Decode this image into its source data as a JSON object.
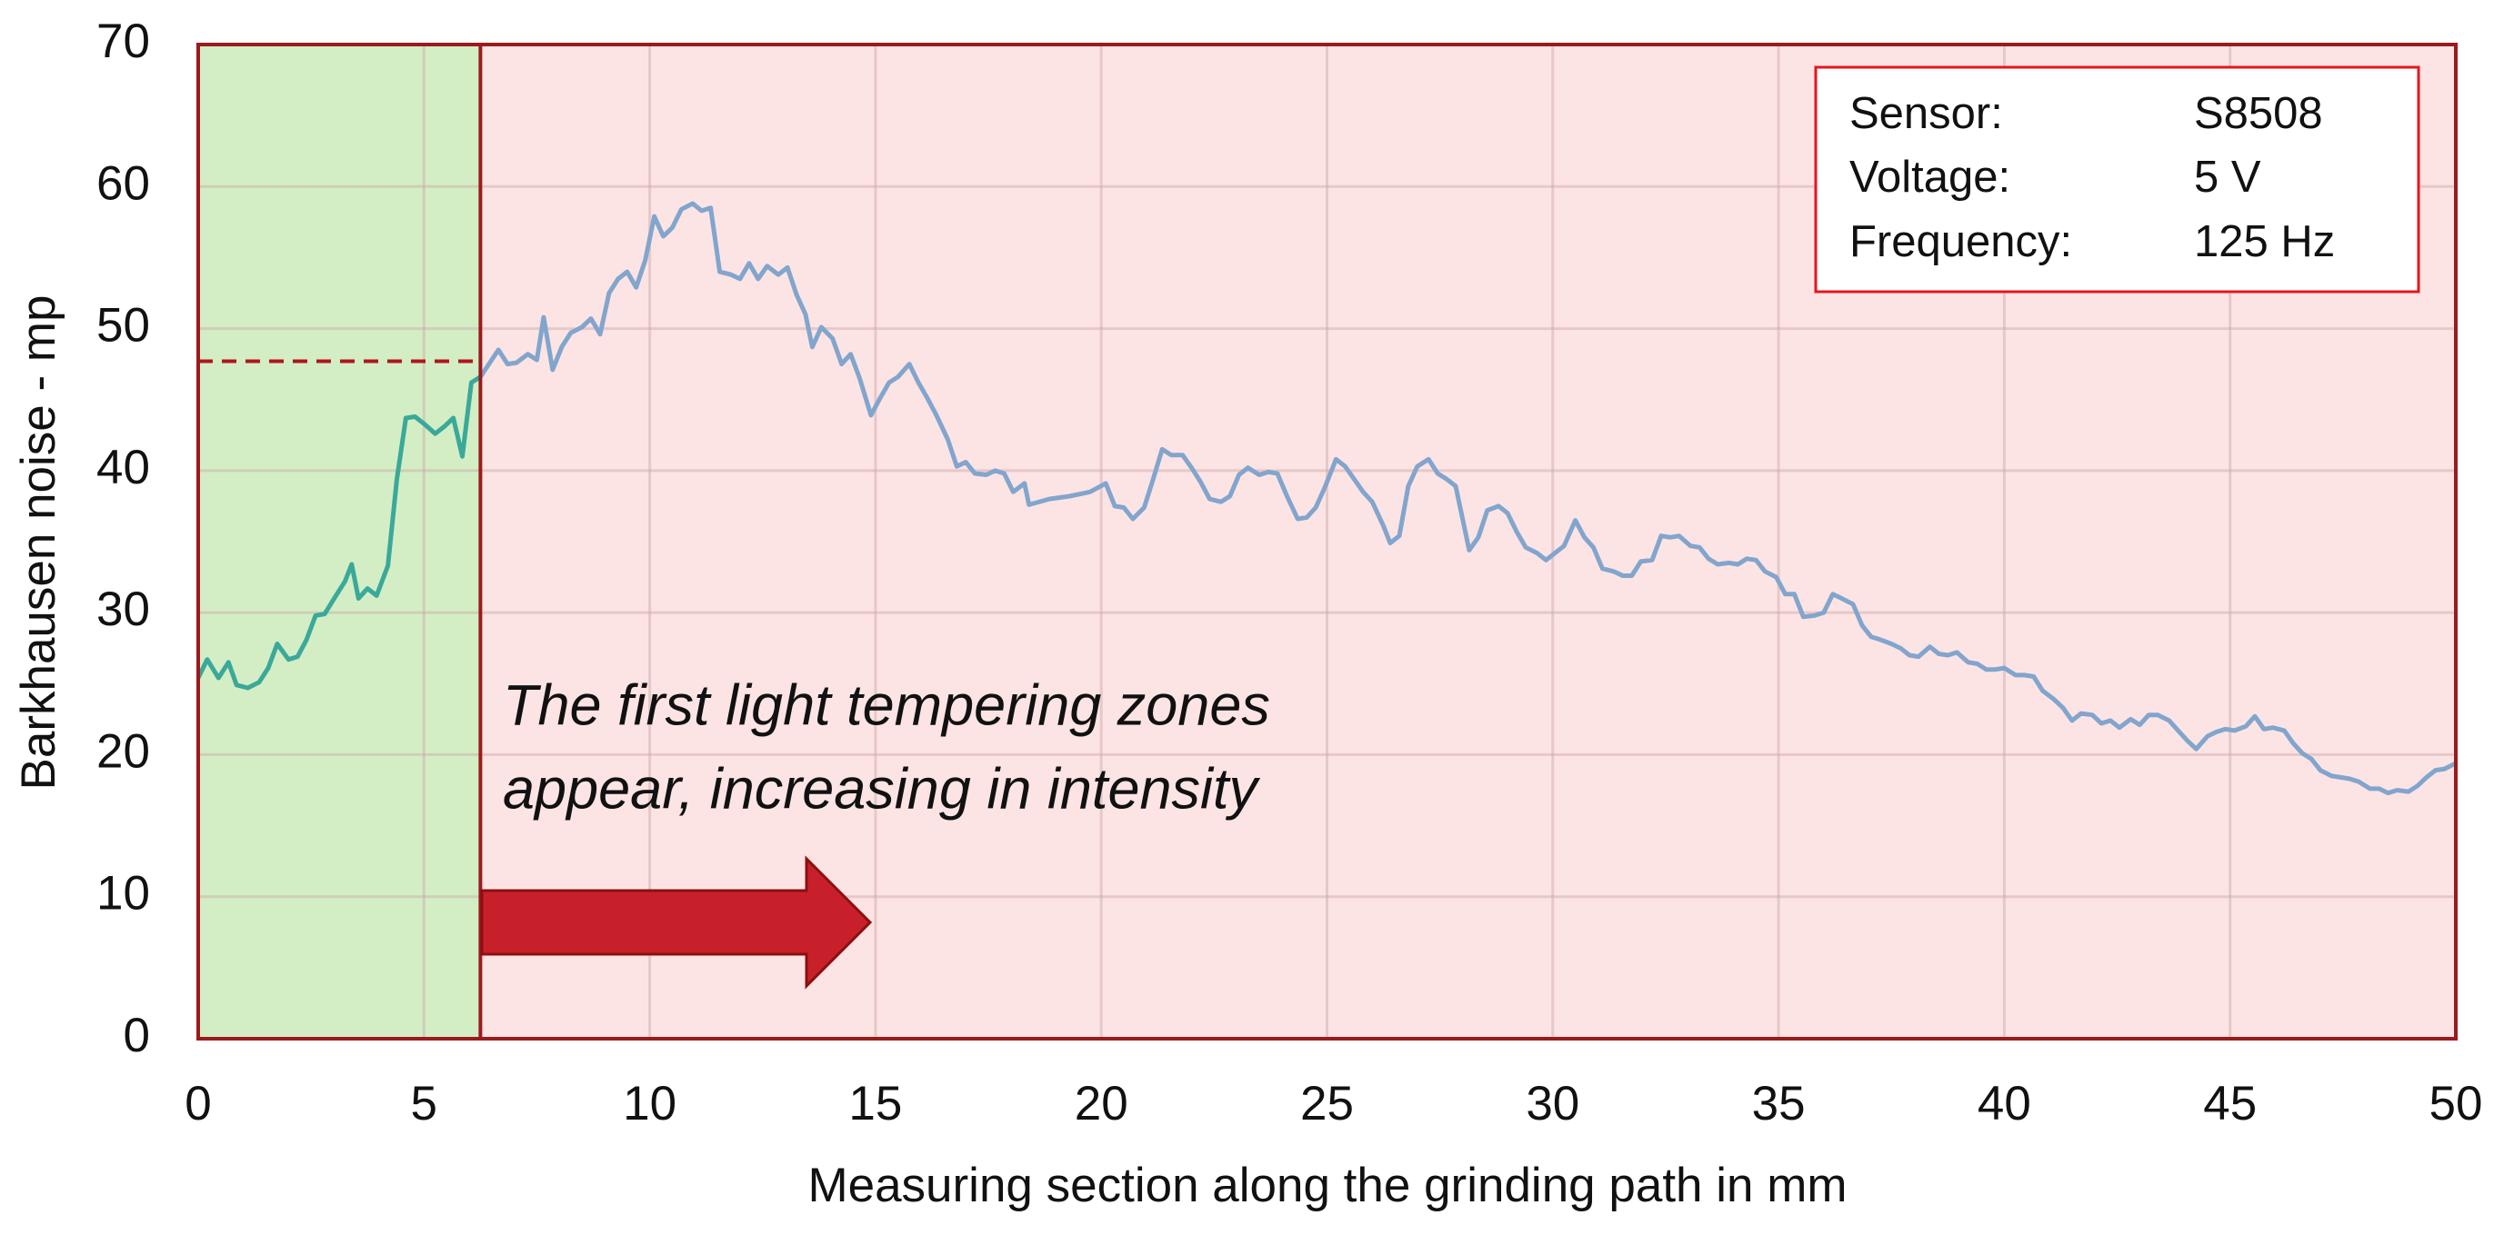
{
  "chart_data": {
    "type": "line",
    "xlabel": "Measuring section along the grinding path in mm",
    "ylabel": "Barkhausen noise - mp",
    "xlim": [
      0,
      50
    ],
    "ylim": [
      0,
      70
    ],
    "xticks": [
      0,
      5,
      10,
      15,
      20,
      25,
      30,
      35,
      40,
      45,
      50
    ],
    "yticks": [
      0,
      10,
      20,
      30,
      40,
      50,
      60,
      70
    ],
    "grid": true,
    "zones": [
      {
        "from": 0,
        "to": 6.25,
        "color": "#d3eec5"
      },
      {
        "from": 6.25,
        "to": 50,
        "color": "#fde4e4"
      }
    ],
    "threshold": 47.7,
    "annotation": [
      "The first light tempering zones",
      "appear, increasing in intensity"
    ],
    "info_box": [
      [
        "Sensor:",
        "S8508"
      ],
      [
        "Voltage:",
        "5 V"
      ],
      [
        "Frequency:",
        "125 Hz"
      ]
    ],
    "series": [
      {
        "color": "#3aa999",
        "x": [
          0,
          0.2,
          0.45,
          0.67,
          0.85,
          1.1,
          1.35,
          1.55,
          1.75,
          2.0,
          2.2,
          2.4,
          2.6,
          2.8,
          3.05,
          3.25,
          3.4,
          3.55,
          3.75,
          3.95,
          4.2,
          4.4,
          4.6,
          4.8,
          5.0,
          5.25,
          5.45,
          5.65,
          5.85,
          6.05,
          6.25
        ],
        "values": [
          25.4,
          26.7,
          25.4,
          26.5,
          24.9,
          24.7,
          25.1,
          26.1,
          27.8,
          26.7,
          26.9,
          28.1,
          29.8,
          29.9,
          31.2,
          32.2,
          33.4,
          31.0,
          31.7,
          31.2,
          33.3,
          39.4,
          43.7,
          43.8,
          43.3,
          42.6,
          43.1,
          43.7,
          41.0,
          46.2,
          46.6
        ]
      },
      {
        "color": "#82a5cd",
        "x": [
          6.25,
          6.5,
          6.65,
          6.85,
          7.05,
          7.3,
          7.5,
          7.65,
          7.85,
          8.05,
          8.25,
          8.5,
          8.7,
          8.9,
          9.1,
          9.3,
          9.5,
          9.7,
          9.9,
          10.1,
          10.3,
          10.5,
          10.7,
          10.95,
          11.15,
          11.35,
          11.55,
          11.8,
          12.0,
          12.2,
          12.4,
          12.6,
          12.85,
          13.05,
          13.25,
          13.45,
          13.6,
          13.8,
          14.05,
          14.25,
          14.45,
          14.65,
          14.9,
          15.1,
          15.3,
          15.5,
          15.75,
          15.95,
          16.15,
          16.35,
          16.6,
          16.8,
          17.0,
          17.2,
          17.45,
          17.65,
          17.85,
          18.05,
          18.3,
          18.4,
          18.85,
          19.3,
          19.75,
          20.1,
          20.3,
          20.5,
          20.7,
          20.95,
          21.15,
          21.35,
          21.55,
          21.8,
          22.0,
          22.2,
          22.4,
          22.65,
          22.85,
          23.05,
          23.25,
          23.5,
          23.7,
          23.9,
          24.1,
          24.35,
          24.55,
          24.75,
          24.95,
          25.2,
          25.4,
          25.6,
          25.8,
          26.0,
          26.25,
          26.4,
          26.6,
          26.8,
          27.0,
          27.25,
          27.45,
          27.65,
          27.85,
          28.15,
          28.35,
          28.55,
          28.8,
          29.0,
          29.2,
          29.4,
          29.65,
          29.85,
          30.05,
          30.25,
          30.5,
          30.7,
          30.9,
          31.1,
          31.35,
          31.55,
          31.75,
          31.95,
          32.2,
          32.4,
          32.6,
          32.8,
          33.05,
          33.25,
          33.45,
          33.65,
          33.9,
          34.1,
          34.3,
          34.5,
          34.7,
          34.95,
          35.15,
          35.35,
          35.55,
          35.8,
          36.0,
          36.2,
          36.4,
          36.65,
          36.85,
          37.05,
          37.25,
          37.5,
          37.7,
          37.9,
          38.1,
          38.35,
          38.55,
          38.75,
          38.95,
          39.2,
          39.4,
          39.6,
          39.8,
          40.0,
          40.25,
          40.45,
          40.65,
          40.85,
          41.1,
          41.3,
          41.5,
          41.7,
          41.95,
          42.15,
          42.35,
          42.55,
          42.8,
          43.0,
          43.2,
          43.4,
          43.65,
          43.85,
          44.05,
          44.25,
          44.5,
          44.7,
          44.9,
          45.1,
          45.35,
          45.55,
          45.75,
          45.95,
          46.2,
          46.4,
          46.6,
          46.8,
          47.0,
          47.25,
          47.45,
          47.65,
          47.85,
          48.1,
          48.3,
          48.5,
          48.7,
          48.95,
          49.15,
          49.35,
          49.55,
          49.75,
          50.0
        ],
        "values": [
          46.6,
          47.8,
          48.5,
          47.5,
          47.6,
          48.2,
          47.8,
          50.8,
          47.1,
          48.7,
          49.7,
          50.1,
          50.7,
          49.6,
          52.5,
          53.5,
          54.0,
          52.9,
          54.8,
          57.9,
          56.5,
          57.1,
          58.4,
          58.8,
          58.3,
          58.5,
          54.0,
          53.8,
          53.5,
          54.6,
          53.5,
          54.4,
          53.8,
          54.3,
          52.4,
          51.0,
          48.7,
          50.1,
          49.3,
          47.5,
          48.2,
          46.5,
          43.9,
          45.1,
          46.2,
          46.6,
          47.5,
          46.2,
          45.1,
          43.9,
          42.2,
          40.3,
          40.6,
          39.8,
          39.7,
          40.0,
          39.8,
          38.5,
          39.1,
          37.6,
          38.0,
          38.2,
          38.5,
          39.1,
          37.5,
          37.4,
          36.6,
          37.4,
          39.4,
          41.5,
          41.1,
          41.1,
          40.2,
          39.2,
          38.0,
          37.8,
          38.2,
          39.7,
          40.2,
          39.7,
          39.9,
          39.8,
          38.3,
          36.6,
          36.7,
          37.4,
          38.8,
          40.8,
          40.3,
          39.4,
          38.5,
          37.8,
          36.1,
          34.9,
          35.4,
          38.9,
          40.3,
          40.8,
          39.8,
          39.4,
          38.9,
          34.4,
          35.3,
          37.2,
          37.5,
          37.0,
          35.7,
          34.6,
          34.2,
          33.7,
          34.2,
          34.7,
          36.5,
          35.3,
          34.6,
          33.1,
          32.9,
          32.6,
          32.6,
          33.6,
          33.7,
          35.4,
          35.3,
          35.4,
          34.7,
          34.6,
          33.8,
          33.4,
          33.5,
          33.4,
          33.8,
          33.7,
          32.9,
          32.5,
          31.3,
          31.3,
          29.7,
          29.8,
          30.0,
          31.3,
          31.0,
          30.6,
          29.1,
          28.3,
          28.1,
          27.8,
          27.5,
          27.0,
          26.9,
          27.6,
          27.1,
          27.0,
          27.2,
          26.5,
          26.4,
          26.0,
          26.0,
          26.1,
          25.6,
          25.6,
          25.5,
          24.5,
          23.9,
          23.3,
          22.4,
          22.9,
          22.8,
          22.2,
          22.4,
          21.9,
          22.5,
          22.1,
          22.8,
          22.8,
          22.4,
          21.7,
          21.0,
          20.4,
          21.3,
          21.6,
          21.8,
          21.7,
          22.0,
          22.7,
          21.8,
          21.9,
          21.7,
          20.8,
          20.1,
          19.7,
          18.9,
          18.5,
          18.4,
          18.3,
          18.1,
          17.6,
          17.6,
          17.3,
          17.5,
          17.4,
          17.8,
          18.4,
          18.9,
          19.0,
          19.4
        ]
      }
    ]
  }
}
